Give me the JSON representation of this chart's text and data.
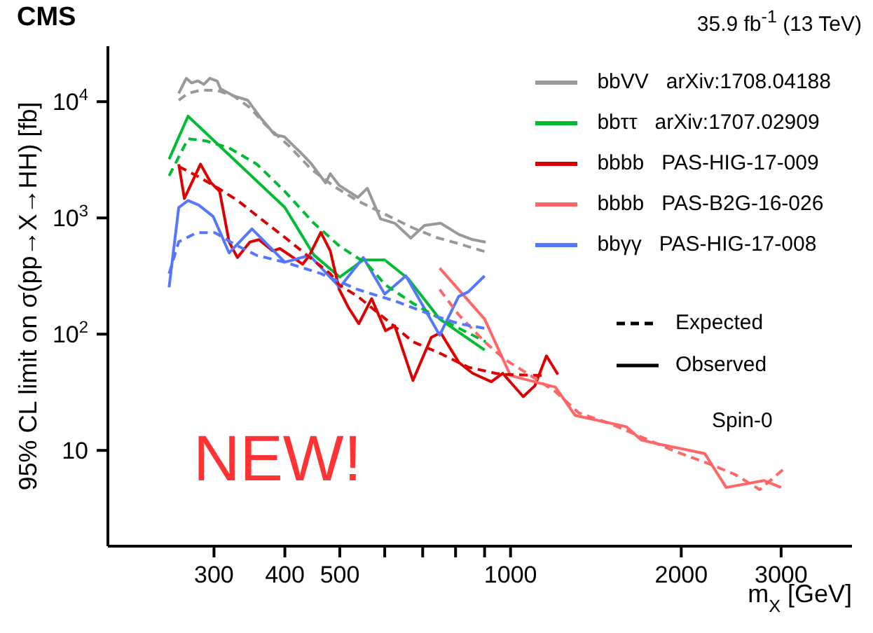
{
  "chart_data": {
    "type": "line",
    "title": "CMS",
    "subtitle": "35.9 fb$^{-1}$ (13 TeV)",
    "xlabel": "m$_{X}$ [GeV]",
    "ylabel": "95% CL limit on σ(pp→X→HH) [fb]",
    "annotations": [
      "Expected",
      "Observed",
      "Spin-0",
      "NEW!"
    ],
    "log": "xy",
    "legend": "top right",
    "grid": false,
    "xlim": [
      195,
      4000
    ],
    "ylim": [
      1.5,
      30000
    ],
    "xticks": [
      300,
      400,
      500,
      {
        "value": 600,
        "label": null
      },
      {
        "value": 700,
        "label": null
      },
      {
        "value": 800,
        "label": null
      },
      {
        "value": 900,
        "label": null
      },
      1000,
      2000,
      3000
    ],
    "yticks": [
      10,
      {
        "value": 100,
        "label": "10$^{2}$"
      },
      {
        "value": 1000,
        "label": "10$^{3}$"
      },
      {
        "value": 10000,
        "label": "10$^{4}$"
      }
    ],
    "series": [
      {
        "name": "bbVV   arXiv:1708.04188",
        "color": "#999999",
        "line_style": "solid",
        "x": [
          260,
          268,
          274,
          281,
          288,
          295,
          304,
          308,
          325,
          344,
          363,
          384,
          399,
          430,
          446,
          472,
          481,
          499,
          538,
          559,
          590,
          625,
          667,
          705,
          753,
          811,
          858,
          904
        ],
        "values": [
          11800,
          15900,
          14500,
          15100,
          14100,
          15900,
          15000,
          12900,
          11200,
          10300,
          7200,
          5200,
          5000,
          3500,
          2900,
          2000,
          2400,
          1900,
          1500,
          1800,
          980,
          900,
          670,
          860,
          900,
          720,
          650,
          620
        ]
      },
      {
        "name": "bbττ   arXiv:1707.02909",
        "color": "#00bb33",
        "line_style": "solid",
        "x": [
          250,
          270,
          400,
          450,
          500,
          550,
          600,
          660,
          750,
          900
        ],
        "values": [
          3200,
          7500,
          1230,
          480,
          310,
          435,
          435,
          300,
          135,
          73
        ]
      },
      {
        "name": "bbbb   PAS-HIG-17-009",
        "color": "#dd0000",
        "line_style": "solid",
        "x": [
          260,
          266,
          284,
          296,
          307,
          319,
          330,
          347,
          360,
          381,
          392,
          414,
          430,
          442,
          463,
          481,
          499,
          518,
          540,
          569,
          602,
          625,
          673,
          725,
          753,
          811,
          858,
          925,
          969,
          1053,
          1104,
          1157,
          1212
        ],
        "values": [
          2900,
          1470,
          2900,
          2020,
          1690,
          620,
          456,
          620,
          650,
          520,
          545,
          456,
          400,
          476,
          750,
          520,
          242,
          169,
          123,
          202,
          107,
          118,
          40,
          94,
          103,
          57,
          46,
          39,
          46,
          29,
          36,
          65,
          45
        ]
      },
      {
        "name": "bbbb   PAS-B2G-16-026",
        "color": "#ff6666",
        "line_style": "solid",
        "x": [
          750,
          900,
          1000,
          1200,
          1300,
          1600,
          1700,
          1800,
          2200,
          2400,
          2800,
          3000
        ],
        "values": [
          370,
          135,
          44,
          35,
          20,
          16,
          12.3,
          11.5,
          9.4,
          4.8,
          5.5,
          4.8
        ]
      },
      {
        "name": "bbγγ   PAS-HIG-17-008",
        "color": "#5577ff",
        "line_style": "solid",
        "x": [
          250,
          260,
          270,
          282,
          299,
          319,
          350,
          400,
          442,
          500,
          550,
          600,
          654,
          750,
          810,
          842,
          900
        ],
        "values": [
          253,
          1230,
          1410,
          1290,
          1030,
          500,
          805,
          416,
          476,
          253,
          456,
          221,
          317,
          98,
          211,
          231,
          317
        ]
      },
      {
        "color": "#999999",
        "line_style": "dashed",
        "x": [
          260,
          270,
          285,
          304,
          325,
          347,
          370,
          406,
          446,
          490,
          538,
          602,
          673,
          739,
          811,
          904
        ],
        "values": [
          10300,
          11800,
          12600,
          12500,
          11200,
          8900,
          6300,
          4200,
          2600,
          1850,
          1400,
          1070,
          820,
          680,
          600,
          510
        ]
      },
      {
        "color": "#00bb33",
        "line_style": "dashed",
        "x": [
          250,
          270,
          290,
          319,
          357,
          400,
          450,
          500,
          559,
          602,
          673,
          753,
          904
        ],
        "values": [
          2300,
          4800,
          4600,
          4000,
          2900,
          1690,
          900,
          570,
          400,
          265,
          184,
          135,
          86
        ]
      },
      {
        "color": "#dd0000",
        "line_style": "dashed",
        "x": [
          260,
          280,
          307,
          331,
          363,
          400,
          438,
          481,
          499,
          538,
          602,
          673,
          753,
          842,
          942,
          978,
          1157
        ],
        "values": [
          2770,
          2300,
          1770,
          1400,
          980,
          680,
          476,
          332,
          265,
          211,
          135,
          86,
          68,
          52,
          46,
          45,
          44
        ]
      },
      {
        "color": "#ff6666",
        "line_style": "dashed",
        "x": [
          750,
          810,
          900,
          980,
          1070,
          1200,
          1320,
          1500,
          1710,
          1950,
          2220,
          2490,
          2750,
          3030
        ],
        "values": [
          242,
          147,
          86,
          60,
          46,
          32,
          21,
          17,
          12.9,
          9.8,
          7.8,
          6.2,
          4.6,
          6.9
        ]
      },
      {
        "color": "#5577ff",
        "line_style": "dashed",
        "x": [
          250,
          260,
          280,
          301,
          325,
          357,
          400,
          463,
          538,
          625,
          725,
          811,
          904
        ],
        "values": [
          332,
          624,
          748,
          748,
          598,
          476,
          416,
          332,
          242,
          193,
          147,
          123,
          112
        ]
      }
    ]
  }
}
